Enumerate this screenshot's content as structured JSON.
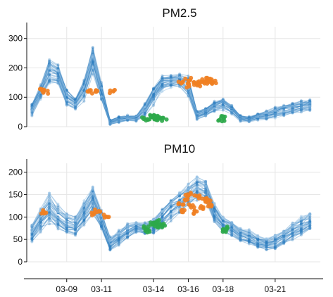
{
  "colors": {
    "base": "#2f7dc0",
    "light": "#9cc6e8",
    "orange": "#f07f22",
    "green": "#2ea84a"
  },
  "chart_data": [
    {
      "type": "line",
      "title": "PM2.5",
      "xlabel": "",
      "ylabel": "",
      "x": [
        0,
        0.5,
        1,
        1.5,
        2,
        2.5,
        3,
        3.5,
        4,
        4.5,
        5,
        5.5,
        6,
        6.5,
        7,
        7.5,
        8,
        8.5,
        9,
        9.5,
        10,
        10.5,
        11,
        11.5,
        12,
        12.5,
        13,
        13.5,
        14,
        14.5,
        15,
        15.5,
        16
      ],
      "x_ticks": [
        {
          "x": 2,
          "label": "03-09"
        },
        {
          "x": 4,
          "label": "03-11"
        },
        {
          "x": 7,
          "label": "03-14"
        },
        {
          "x": 9,
          "label": "03-16"
        },
        {
          "x": 11,
          "label": "03-18"
        },
        {
          "x": 14,
          "label": "03-21"
        }
      ],
      "y_ticks": [
        0,
        100,
        200,
        300
      ],
      "ylim": [
        0,
        340
      ],
      "xlim": [
        -0.3,
        16.6
      ],
      "grid": true,
      "series_median": [
        60,
        120,
        190,
        180,
        100,
        80,
        130,
        230,
        120,
        15,
        25,
        30,
        30,
        60,
        110,
        150,
        155,
        160,
        140,
        40,
        50,
        70,
        80,
        60,
        30,
        25,
        35,
        40,
        50,
        60,
        65,
        70,
        75
      ],
      "spread": [
        20,
        25,
        45,
        40,
        30,
        20,
        35,
        45,
        30,
        8,
        10,
        10,
        10,
        20,
        30,
        25,
        20,
        20,
        35,
        15,
        15,
        20,
        20,
        15,
        10,
        10,
        12,
        15,
        18,
        20,
        20,
        22,
        22
      ],
      "series_count": 34,
      "highlights": [
        {
          "color": "orange",
          "points": [
            [
              0.6,
              122
            ],
            [
              0.8,
              118
            ],
            [
              3.3,
              120
            ],
            [
              3.6,
              125
            ],
            [
              4.6,
              118
            ],
            [
              8.6,
              150
            ],
            [
              9.0,
              160
            ],
            [
              9.4,
              145
            ],
            [
              9.8,
              155
            ],
            [
              10.2,
              162
            ],
            [
              10.5,
              150
            ],
            [
              8.9,
              140
            ],
            [
              9.6,
              142
            ],
            [
              10.0,
              152
            ],
            [
              10.3,
              158
            ]
          ]
        },
        {
          "color": "green",
          "points": [
            [
              6.5,
              25
            ],
            [
              6.8,
              30
            ],
            [
              7.0,
              22
            ],
            [
              7.3,
              28
            ],
            [
              7.6,
              26
            ],
            [
              6.9,
              35
            ],
            [
              7.2,
              33
            ],
            [
              10.9,
              25
            ],
            [
              11.0,
              30
            ]
          ]
        }
      ]
    },
    {
      "type": "line",
      "title": "PM10",
      "xlabel": "",
      "ylabel": "",
      "x": [
        0,
        0.5,
        1,
        1.5,
        2,
        2.5,
        3,
        3.5,
        4,
        4.5,
        5,
        5.5,
        6,
        6.5,
        7,
        7.5,
        8,
        8.5,
        9,
        9.5,
        10,
        10.5,
        11,
        11.5,
        12,
        12.5,
        13,
        13.5,
        14,
        14.5,
        15,
        15.5,
        16
      ],
      "x_ticks": [
        {
          "x": 2,
          "label": "03-09"
        },
        {
          "x": 4,
          "label": "03-11"
        },
        {
          "x": 7,
          "label": "03-14"
        },
        {
          "x": 9,
          "label": "03-16"
        },
        {
          "x": 11,
          "label": "03-18"
        },
        {
          "x": 14,
          "label": "03-21"
        }
      ],
      "y_ticks": [
        0,
        50,
        100,
        150,
        200
      ],
      "ylim": [
        0,
        220
      ],
      "xlim": [
        -0.3,
        16.6
      ],
      "grid": true,
      "series_median": [
        65,
        95,
        120,
        100,
        85,
        80,
        110,
        140,
        95,
        40,
        55,
        70,
        78,
        75,
        80,
        100,
        120,
        135,
        150,
        165,
        160,
        110,
        85,
        75,
        60,
        55,
        45,
        40,
        45,
        55,
        70,
        80,
        90
      ],
      "spread": [
        20,
        25,
        30,
        25,
        20,
        20,
        25,
        30,
        25,
        15,
        15,
        15,
        12,
        12,
        15,
        20,
        25,
        25,
        25,
        25,
        20,
        20,
        15,
        15,
        15,
        15,
        12,
        12,
        15,
        15,
        18,
        20,
        20
      ],
      "series_count": 34,
      "highlights": [
        {
          "color": "orange",
          "points": [
            [
              0.6,
              105
            ],
            [
              0.8,
              112
            ],
            [
              3.5,
              108
            ],
            [
              3.8,
              115
            ],
            [
              4.3,
              102
            ],
            [
              8.6,
              130
            ],
            [
              8.9,
              140
            ],
            [
              9.2,
              125
            ],
            [
              9.5,
              145
            ],
            [
              9.8,
              120
            ],
            [
              10.1,
              135
            ],
            [
              8.7,
              115
            ],
            [
              9.0,
              150
            ],
            [
              9.4,
              110
            ],
            [
              9.9,
              138
            ],
            [
              10.3,
              125
            ]
          ]
        },
        {
          "color": "green",
          "points": [
            [
              6.6,
              75
            ],
            [
              6.9,
              85
            ],
            [
              7.1,
              80
            ],
            [
              7.4,
              78
            ],
            [
              6.7,
              70
            ],
            [
              7.2,
              90
            ],
            [
              7.5,
              82
            ],
            [
              11.0,
              70
            ],
            [
              11.2,
              75
            ]
          ]
        }
      ]
    }
  ]
}
